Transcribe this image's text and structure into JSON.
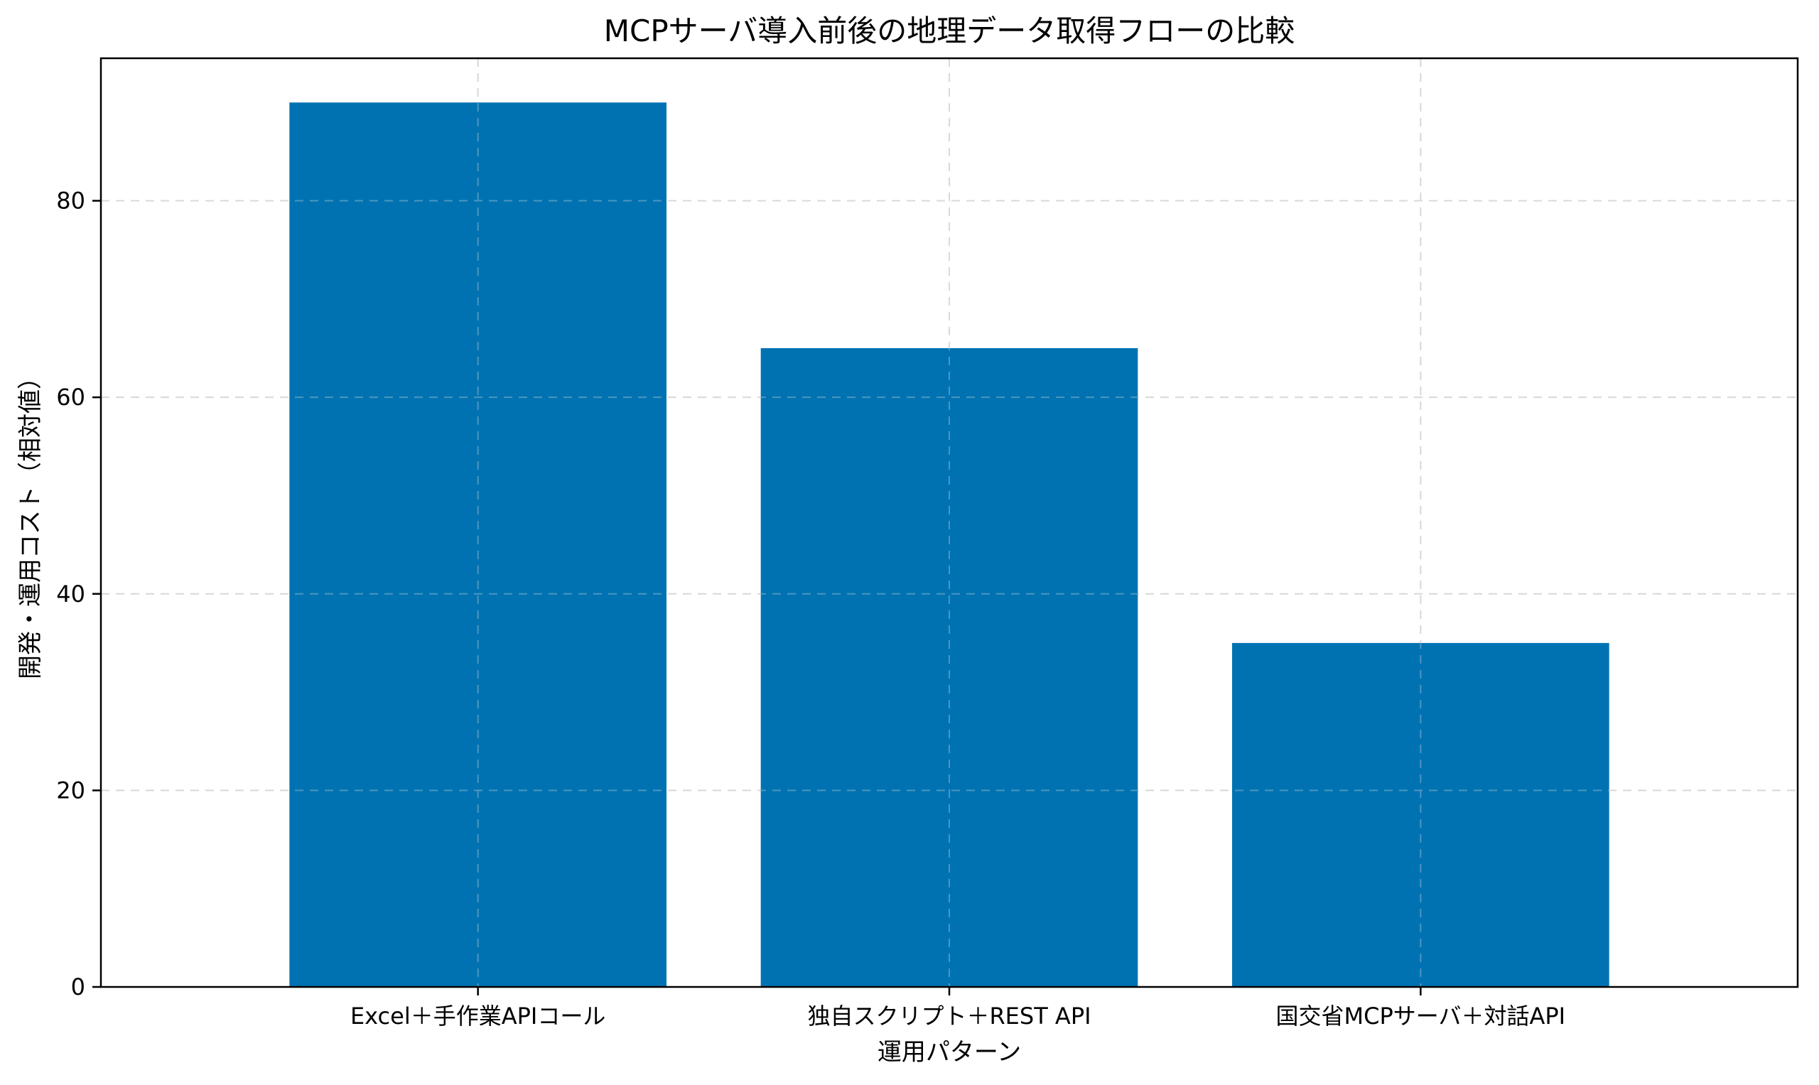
{
  "chart_data": {
    "type": "bar",
    "title": "MCPサーバ導入前後の地理データ取得フローの比較",
    "xlabel": "運用パターン",
    "ylabel": "開発・運用コスト（相対値）",
    "categories": [
      "Excel＋手作業APIコール",
      "独自スクリプト＋REST API",
      "国交省MCPサーバ＋対話API"
    ],
    "values": [
      90,
      65,
      35
    ],
    "ylim": [
      0,
      94.5
    ],
    "yticks": [
      0,
      20,
      40,
      60,
      80
    ],
    "grid": true,
    "bar_color": "#0072B2"
  }
}
